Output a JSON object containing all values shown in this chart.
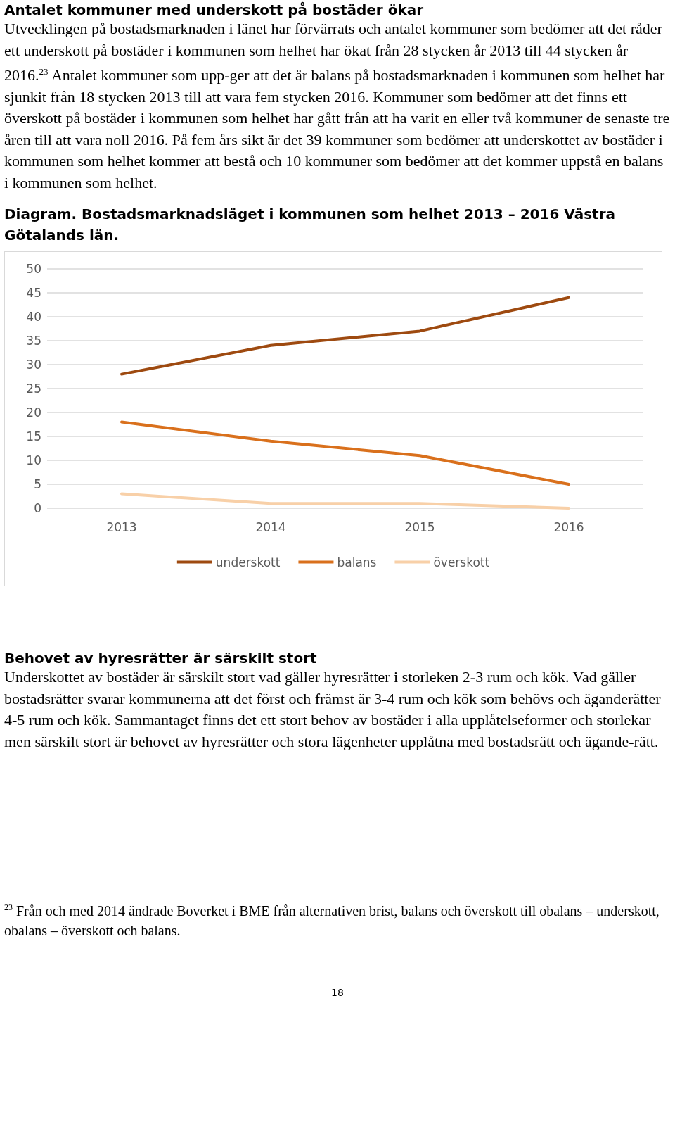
{
  "chart_data": {
    "type": "line",
    "title": "Diagram. Bostadsmarknadsläget i kommunen som helhet 2013 – 2016 Västra Götalands län.",
    "annotations": [
      "Antalet kommuner med underskott på bostäder ökar",
      "Utvecklingen på bostadsmarknaden i länet har förvärrats och antalet kommuner som bedömer att det råder ett underskott på bostäder i kommunen som helhet har ökat från 28 stycken år 2013 till 44 stycken år 2016.$^{23}$ Antalet kommuner som upp-ger att det är balans på bostadsmarknaden i kommunen som helhet har sjunkit från 18 stycken 2013 till att vara fem stycken 2016. Kommuner som bedömer att det finns ett överskott på bostäder i kommunen som helhet har gått från att ha varit en eller två kommuner de senaste tre åren till att vara noll 2016. På fem års sikt är det 39 kommuner som bedömer att underskottet av bostäder i kommunen som helhet kommer att bestå och 10 kommuner som bedömer att det kommer uppstå en balans i kommunen som helhet.",
      "Behovet av hyresrätter är särskilt stort",
      "Underskottet av bostäder är särskilt stort vad gäller hyresrätter i storleken 2-3 rum och kök. Vad gäller bostadsrätter svarar kommunerna att det först och främst är 3-4 rum och kök som behövs och äganderätter 4-5 rum och kök. Sammantaget finns det ett stort behov av bostäder i alla upplåtelseformer och storlekar men särskilt stort är behovet av hyresrätter och stora lägenheter upplåtna med bostadsrätt och ägande-rätt.",
      "$^{23}$ Från och med 2014 ändrade Boverket i BME från alternativen brist, balans och överskott till obalans – underskott, obalans – överskott och balans.",
      "18"
    ],
    "categories": [
      "2013",
      "2014",
      "2015",
      "2016"
    ],
    "series": [
      {
        "name": "underskott",
        "color": "#9e4a10",
        "values": [
          28,
          34,
          37,
          44
        ]
      },
      {
        "name": "balans",
        "color": "#d9701c",
        "values": [
          18,
          14,
          11,
          5
        ]
      },
      {
        "name": "överskott",
        "color": "#f8d0a8",
        "values": [
          3,
          1,
          1,
          0
        ]
      }
    ],
    "ylim": [
      0,
      50
    ],
    "yticks": [
      0,
      5,
      10,
      15,
      20,
      25,
      30,
      35,
      40,
      45,
      50
    ],
    "grid": "y",
    "legend": "bottom",
    "marker": "none",
    "line_style": "solid"
  }
}
